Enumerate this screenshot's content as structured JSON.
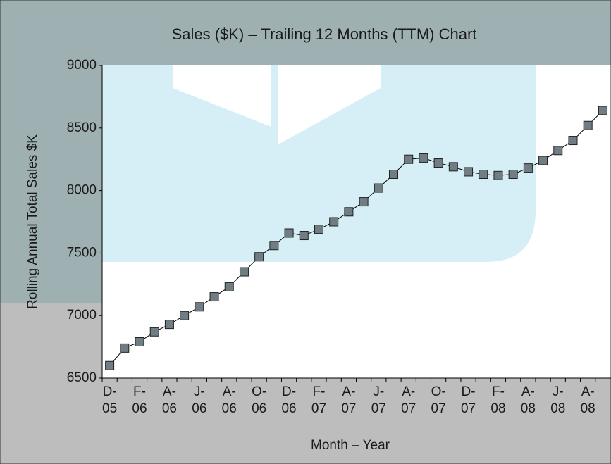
{
  "chart_data": {
    "type": "line",
    "title": "Sales ($K) – Trailing 12 Months (TTM) Chart",
    "x_label": "Month – Year",
    "y_label": "Rolling Annual Total Sales $K",
    "categories": [
      "D-05",
      null,
      "F-06",
      null,
      "A-06",
      null,
      "J-06",
      null,
      "A-06",
      null,
      "O-06",
      null,
      "D-06",
      null,
      "F-07",
      null,
      "A-07",
      null,
      "J-07",
      null,
      "A-07",
      null,
      "O-07",
      null,
      "D-07",
      null,
      "F-08",
      null,
      "A-08",
      null,
      "J-08",
      null,
      "A-08",
      null
    ],
    "series": [
      {
        "name": "Rolling Annual Total Sales",
        "color": "#707e83",
        "values": [
          6600,
          6740,
          6790,
          6870,
          6930,
          7000,
          7070,
          7150,
          7230,
          7350,
          7470,
          7560,
          7660,
          7640,
          7690,
          7750,
          7830,
          7910,
          8020,
          8130,
          8250,
          8260,
          8220,
          8190,
          8150,
          8130,
          8120,
          8130,
          8180,
          8240,
          8320,
          8400,
          8520,
          8640
        ]
      }
    ],
    "ylim": [
      6500,
      9000
    ],
    "yticks": [
      6500,
      7000,
      7500,
      8000,
      8500,
      9000
    ],
    "grid": false
  }
}
